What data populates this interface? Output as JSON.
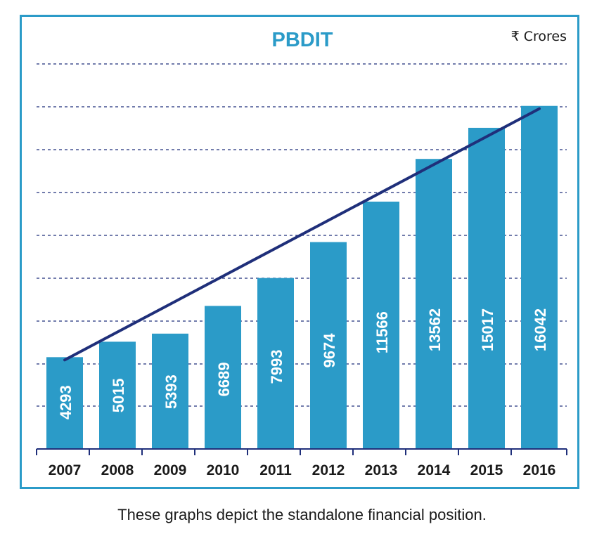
{
  "chart_data": {
    "type": "bar",
    "title": "PBDIT",
    "unit_label": "₹ Crores",
    "categories": [
      "2007",
      "2008",
      "2009",
      "2010",
      "2011",
      "2012",
      "2013",
      "2014",
      "2015",
      "2016"
    ],
    "values": [
      4293,
      5015,
      5393,
      6689,
      7993,
      9674,
      11566,
      13562,
      15017,
      16042
    ],
    "ylim": [
      0,
      16000
    ],
    "grid": true,
    "trendline": true,
    "colors": {
      "bar": "#2b9bc8",
      "trend": "#1f2f7a",
      "title": "#2b9bc8",
      "grid": "#1f2f7a",
      "axis": "#1f2f7a"
    }
  },
  "caption": "These graphs depict the standalone financial position."
}
